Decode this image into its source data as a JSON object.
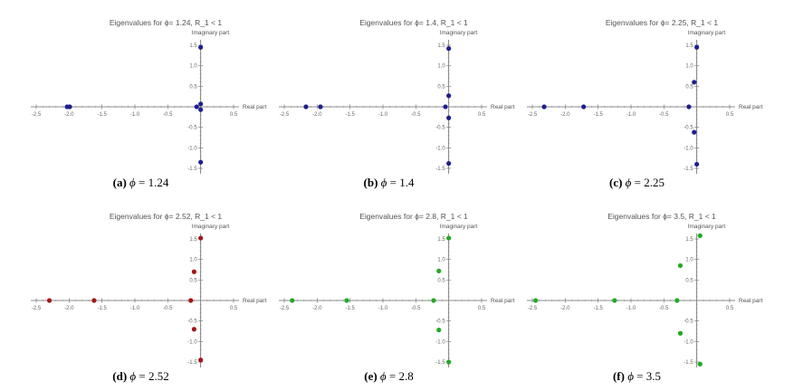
{
  "chart_data": [
    {
      "type": "scatter",
      "id": "a",
      "title": "Eigenvalues for ϕ= 1.24, R_1 < 1",
      "xlabel": "Real part",
      "ylabel": "Imaginary part",
      "xlim": [
        -2.5,
        0.5
      ],
      "ylim": [
        -1.5,
        1.5
      ],
      "xticks": [
        "-2.5",
        "-2.0",
        "-1.5",
        "-1.0",
        "-0.5",
        "0.5"
      ],
      "yticks": [
        "1.5",
        "1.0",
        "0.5",
        "-0.5",
        "-1.0",
        "-1.5"
      ],
      "color": "#1f1f8f",
      "points": [
        [
          -2.03,
          0
        ],
        [
          -1.99,
          0
        ],
        [
          -0.06,
          0
        ],
        [
          0.0,
          0.07
        ],
        [
          0.0,
          -0.07
        ],
        [
          0.0,
          1.45
        ],
        [
          0.0,
          -1.35
        ]
      ],
      "caption_label": "(a)",
      "caption_phi": "ϕ",
      "caption_value": "= 1.24"
    },
    {
      "type": "scatter",
      "id": "b",
      "title": "Eigenvalues for ϕ= 1.4, R_1 < 1",
      "xlabel": "Real part",
      "ylabel": "Imaginary part",
      "xlim": [
        -2.5,
        0.5
      ],
      "ylim": [
        -1.5,
        1.5
      ],
      "xticks": [
        "-2.5",
        "-2.0",
        "-1.5",
        "-1.0",
        "-0.5",
        "0.5"
      ],
      "yticks": [
        "1.5",
        "1.0",
        "0.5",
        "-0.5",
        "-1.0",
        "-1.5"
      ],
      "color": "#1f1f8f",
      "points": [
        [
          -2.17,
          0
        ],
        [
          -1.95,
          0
        ],
        [
          -0.05,
          0
        ],
        [
          0.0,
          0.27
        ],
        [
          0.0,
          -0.27
        ],
        [
          0.0,
          1.42
        ],
        [
          0.0,
          -1.38
        ]
      ],
      "caption_label": "(b)",
      "caption_phi": "ϕ",
      "caption_value": "= 1.4"
    },
    {
      "type": "scatter",
      "id": "c",
      "title": "Eigenvalues for ϕ= 2.25, R_1 < 1",
      "xlabel": "Real part",
      "ylabel": "Imaginary part",
      "xlim": [
        -2.5,
        0.5
      ],
      "ylim": [
        -1.5,
        1.5
      ],
      "xticks": [
        "-2.5",
        "-2.0",
        "-1.5",
        "-1.0",
        "-0.5",
        "0.5"
      ],
      "yticks": [
        "1.5",
        "1.0",
        "0.5",
        "-0.5",
        "-1.0",
        "-1.5"
      ],
      "color": "#1f1f8f",
      "points": [
        [
          -2.32,
          0
        ],
        [
          -1.72,
          0
        ],
        [
          -0.12,
          0
        ],
        [
          -0.04,
          0.6
        ],
        [
          -0.04,
          -0.62
        ],
        [
          0.0,
          1.45
        ],
        [
          0.0,
          -1.4
        ]
      ],
      "caption_label": "(c)",
      "caption_phi": "ϕ",
      "caption_value": "= 2.25"
    },
    {
      "type": "scatter",
      "id": "d",
      "title": "Eigenvalues for ϕ= 2.52, R_1 < 1",
      "xlabel": "Real part",
      "ylabel": "Imaginary part",
      "xlim": [
        -2.5,
        0.5
      ],
      "ylim": [
        -1.5,
        1.5
      ],
      "xticks": [
        "-2.5",
        "-2.0",
        "-1.5",
        "-1.0",
        "-0.5",
        "0.5"
      ],
      "yticks": [
        "1.5",
        "1.0",
        "0.5",
        "-0.5",
        "-1.0",
        "-1.5"
      ],
      "color": "#a01818",
      "points": [
        [
          -2.3,
          0
        ],
        [
          -1.62,
          0
        ],
        [
          -0.15,
          0
        ],
        [
          -0.1,
          0.7
        ],
        [
          -0.1,
          -0.7
        ],
        [
          0.0,
          1.52
        ],
        [
          0.0,
          -1.45
        ]
      ],
      "caption_label": "(d)",
      "caption_phi": "ϕ",
      "caption_value": "= 2.52"
    },
    {
      "type": "scatter",
      "id": "e",
      "title": "Eigenvalues for ϕ= 2.8, R_1 < 1",
      "xlabel": "Real part",
      "ylabel": "Imaginary part",
      "xlim": [
        -2.5,
        0.5
      ],
      "ylim": [
        -1.5,
        1.5
      ],
      "xticks": [
        "-2.5",
        "-2.0",
        "-1.5",
        "-1.0",
        "-0.5",
        "0.5"
      ],
      "yticks": [
        "1.5",
        "1.0",
        "0.5",
        "-0.5",
        "-1.0",
        "-1.5"
      ],
      "color": "#22aa22",
      "points": [
        [
          -2.38,
          0
        ],
        [
          -1.55,
          0
        ],
        [
          -0.23,
          0
        ],
        [
          -0.15,
          0.72
        ],
        [
          -0.15,
          -0.72
        ],
        [
          0.0,
          1.52
        ],
        [
          0.0,
          -1.5
        ]
      ],
      "caption_label": "(e)",
      "caption_phi": "ϕ",
      "caption_value": "= 2.8"
    },
    {
      "type": "scatter",
      "id": "f",
      "title": "Eigenvalues for ϕ= 3.5, R_1 < 1",
      "xlabel": "Real part",
      "ylabel": "Imaginary part",
      "xlim": [
        -2.5,
        0.5
      ],
      "ylim": [
        -1.5,
        1.5
      ],
      "xticks": [
        "-2.5",
        "-2.0",
        "-1.5",
        "-1.0",
        "-0.5",
        "0.5"
      ],
      "yticks": [
        "1.5",
        "1.0",
        "0.5",
        "-0.5",
        "-1.0",
        "-1.5"
      ],
      "color": "#22aa22",
      "points": [
        [
          -2.45,
          0
        ],
        [
          -1.25,
          0
        ],
        [
          -0.3,
          0
        ],
        [
          -0.25,
          0.85
        ],
        [
          -0.25,
          -0.8
        ],
        [
          0.05,
          1.58
        ],
        [
          0.05,
          -1.55
        ]
      ],
      "caption_label": "(f)",
      "caption_phi": "ϕ",
      "caption_value": "= 3.5"
    }
  ]
}
